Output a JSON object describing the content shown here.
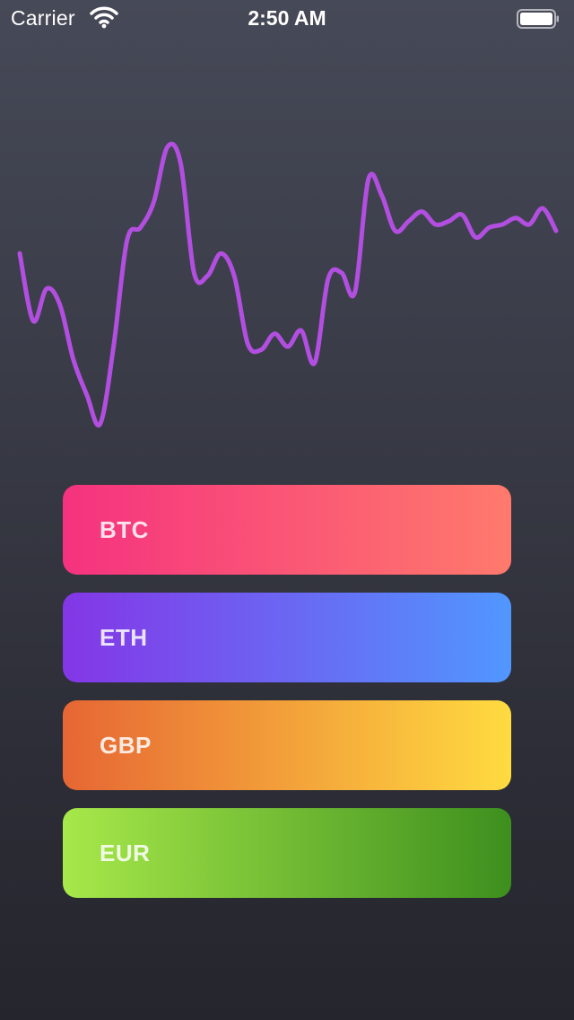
{
  "status_bar": {
    "carrier": "Carrier",
    "time": "2:50 AM",
    "icons": [
      "wifi-icon",
      "battery-icon"
    ]
  },
  "chart_data": {
    "type": "line",
    "color": "#b24ee0",
    "x": [
      0,
      1,
      2,
      3,
      4,
      5,
      6,
      7,
      8,
      9,
      10,
      11,
      12,
      13,
      14,
      15,
      16,
      17,
      18,
      19,
      20,
      21,
      22,
      23,
      24,
      25,
      26,
      27,
      28,
      29,
      30,
      31,
      32,
      33,
      34,
      35,
      36,
      37,
      38,
      39,
      40
    ],
    "y": [
      54,
      33,
      43,
      38,
      21,
      10,
      1,
      25,
      58,
      62,
      70,
      87,
      82,
      48,
      47,
      54,
      47,
      26,
      24,
      29,
      25,
      30,
      20,
      46,
      48,
      42,
      77,
      72,
      61,
      64,
      67,
      63,
      64,
      66,
      59,
      62,
      63,
      65,
      63,
      68,
      61
    ],
    "xlabel": "",
    "ylabel": "",
    "grid": false,
    "legend": "none"
  },
  "currencies": [
    {
      "label": "BTC",
      "gradient_start": "#f5327f",
      "gradient_end": "#ff7a6c"
    },
    {
      "label": "ETH",
      "gradient_start": "#8436e6",
      "gradient_end": "#5197ff"
    },
    {
      "label": "GBP",
      "gradient_start": "#e66634",
      "gradient_end": "#ffdb40"
    },
    {
      "label": "EUR",
      "gradient_start": "#a7e84a",
      "gradient_end": "#3d8f1e"
    }
  ]
}
